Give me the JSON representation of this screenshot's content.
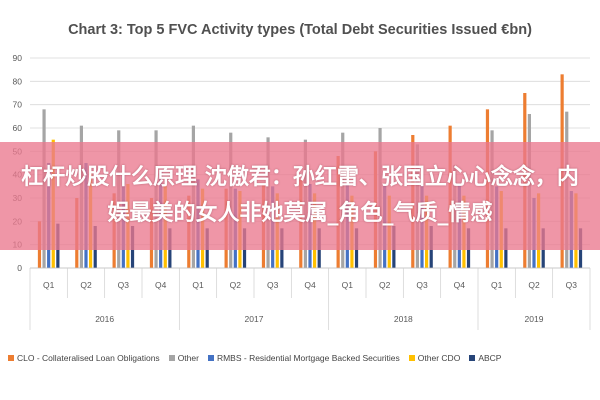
{
  "chart_data": {
    "type": "bar",
    "title": "Chart 3: Top 5 FVC Activity types (Total Debt Securities Issued €bn)",
    "xlabel": "",
    "ylabel": "",
    "ylim": [
      0,
      90
    ],
    "yticks": [
      0,
      10,
      20,
      30,
      40,
      50,
      60,
      70,
      80,
      90
    ],
    "grid": true,
    "legend_position": "bottom",
    "categories": [
      "Q1",
      "Q2",
      "Q3",
      "Q4",
      "Q1",
      "Q2",
      "Q3",
      "Q4",
      "Q1",
      "Q2",
      "Q3",
      "Q4",
      "Q1",
      "Q2",
      "Q3"
    ],
    "year_groups": [
      {
        "label": "2016",
        "count": 4
      },
      {
        "label": "2017",
        "count": 4
      },
      {
        "label": "2018",
        "count": 4
      },
      {
        "label": "2019",
        "count": 3
      }
    ],
    "series": [
      {
        "name": "CLO - Collateralised Loan Obligations",
        "color": "#ed7d31",
        "values": [
          20,
          30,
          32,
          30,
          31,
          34,
          36,
          38,
          48,
          50,
          57,
          61,
          68,
          75,
          83
        ]
      },
      {
        "name": "Other",
        "color": "#a5a5a5",
        "values": [
          68,
          61,
          59,
          59,
          61,
          58,
          56,
          55,
          58,
          60,
          53,
          44,
          59,
          66,
          67
        ]
      },
      {
        "name": "RMBS - Residential Mortgage Backed Securities",
        "color": "#4472c4",
        "values": [
          45,
          45,
          40,
          42,
          38,
          34,
          35,
          36,
          36,
          36,
          36,
          36,
          35,
          30,
          33
        ]
      },
      {
        "name": "Other CDO",
        "color": "#ffc000",
        "values": [
          55,
          41,
          36,
          35,
          34,
          33,
          32,
          32,
          31,
          31,
          31,
          31,
          33,
          32,
          32
        ]
      },
      {
        "name": "ABCP",
        "color": "#264478",
        "values": [
          19,
          18,
          18,
          17,
          17,
          17,
          17,
          17,
          17,
          18,
          18,
          17,
          17,
          17,
          17
        ]
      }
    ]
  },
  "overlay": {
    "banner_text": "杠杆炒股什么原理 沈傲君：孙红雷、张国立心心念念，内娱最美的女人非她莫属_角色_气质_情感"
  }
}
